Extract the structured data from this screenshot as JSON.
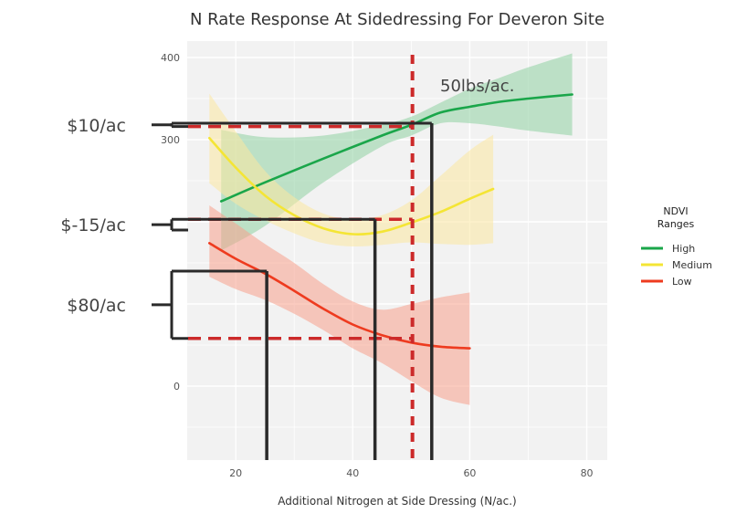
{
  "chart_data": {
    "type": "line",
    "title": "N Rate Response At Sidedressing For Deveron Site",
    "xlabel": "Additional Nitrogen at Side Dressing (N/ac.)",
    "ylabel": "",
    "xlim": [
      11.7,
      83.5
    ],
    "ylim": [
      -90,
      420
    ],
    "x_ticks": [
      20,
      40,
      60,
      80
    ],
    "y_ticks": [
      0,
      300,
      400
    ],
    "grid": true,
    "legend": {
      "title_lines": [
        "NDVI",
        "Ranges"
      ],
      "position": "right"
    },
    "series": [
      {
        "name": "High",
        "color": "#1aa64a",
        "band_color": "#8fd1a3",
        "points": [
          [
            17.5,
            225
          ],
          [
            25,
            248
          ],
          [
            35,
            277
          ],
          [
            45,
            305
          ],
          [
            50,
            318
          ],
          [
            55,
            333
          ],
          [
            60,
            340
          ],
          [
            65,
            346
          ],
          [
            70,
            350
          ],
          [
            77.5,
            355
          ]
        ],
        "upper": [
          [
            17.5,
            312
          ],
          [
            25,
            303
          ],
          [
            35,
            305
          ],
          [
            45,
            318
          ],
          [
            50,
            328
          ],
          [
            55,
            345
          ],
          [
            60,
            362
          ],
          [
            65,
            375
          ],
          [
            70,
            388
          ],
          [
            77.5,
            405
          ]
        ],
        "lower": [
          [
            17.5,
            165
          ],
          [
            25,
            195
          ],
          [
            35,
            248
          ],
          [
            45,
            292
          ],
          [
            50,
            305
          ],
          [
            55,
            320
          ],
          [
            60,
            320
          ],
          [
            65,
            316
          ],
          [
            70,
            311
          ],
          [
            77.5,
            305
          ]
        ]
      },
      {
        "name": "Medium",
        "color": "#f4e535",
        "band_color": "#fce8a0",
        "points": [
          [
            15.5,
            302
          ],
          [
            20,
            266
          ],
          [
            25,
            232
          ],
          [
            30,
            208
          ],
          [
            35,
            192
          ],
          [
            40,
            185
          ],
          [
            45,
            188
          ],
          [
            50,
            199
          ],
          [
            55,
            212
          ],
          [
            60,
            228
          ],
          [
            64,
            240
          ]
        ],
        "upper": [
          [
            15.5,
            356
          ],
          [
            20,
            310
          ],
          [
            25,
            262
          ],
          [
            30,
            230
          ],
          [
            35,
            210
          ],
          [
            40,
            203
          ],
          [
            45,
            208
          ],
          [
            50,
            226
          ],
          [
            55,
            256
          ],
          [
            60,
            287
          ],
          [
            64,
            306
          ]
        ],
        "lower": [
          [
            15.5,
            247
          ],
          [
            20,
            222
          ],
          [
            25,
            202
          ],
          [
            30,
            186
          ],
          [
            35,
            174
          ],
          [
            40,
            170
          ],
          [
            45,
            172
          ],
          [
            50,
            175
          ],
          [
            55,
            173
          ],
          [
            60,
            172
          ],
          [
            64,
            174
          ]
        ]
      },
      {
        "name": "Low",
        "color": "#ee3b1f",
        "band_color": "#f8a18c",
        "points": [
          [
            15.5,
            174
          ],
          [
            20,
            155
          ],
          [
            25,
            137
          ],
          [
            30,
            116
          ],
          [
            35,
            94
          ],
          [
            40,
            75
          ],
          [
            45,
            62
          ],
          [
            50,
            53
          ],
          [
            55,
            48
          ],
          [
            60,
            46
          ]
        ],
        "upper": [
          [
            15.5,
            220
          ],
          [
            20,
            198
          ],
          [
            25,
            173
          ],
          [
            30,
            150
          ],
          [
            35,
            124
          ],
          [
            40,
            103
          ],
          [
            45,
            93
          ],
          [
            50,
            100
          ],
          [
            55,
            108
          ],
          [
            60,
            114
          ]
        ],
        "lower": [
          [
            15.5,
            133
          ],
          [
            20,
            118
          ],
          [
            25,
            105
          ],
          [
            30,
            88
          ],
          [
            35,
            68
          ],
          [
            40,
            46
          ],
          [
            45,
            28
          ],
          [
            50,
            6
          ],
          [
            55,
            -14
          ],
          [
            60,
            -23
          ]
        ]
      }
    ],
    "annotations": {
      "vertical_dashed_x": 50.2,
      "vertical_dashed_label": "50lbs/ac.",
      "dashed_levels_y": [
        316,
        203,
        58
      ],
      "brackets": [
        {
          "label": "$10/ac",
          "y_top": 320,
          "y_bottom": 316,
          "drop_x": 53.5
        },
        {
          "label": "$-15/ac",
          "y_top": 203,
          "y_bottom": 190,
          "drop_x": 43.8
        },
        {
          "label": "$80/ac",
          "y_top": 140,
          "y_bottom": 58,
          "drop_x": 25.3
        }
      ]
    }
  }
}
